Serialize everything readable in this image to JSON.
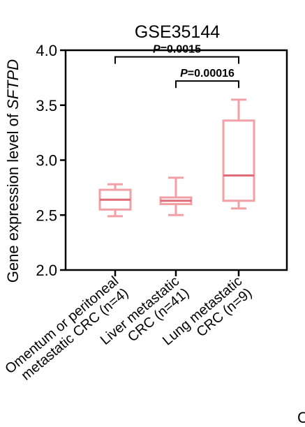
{
  "chart_data": {
    "type": "box",
    "title": "GSE35144",
    "ylabel_prefix": "Gene expression level of ",
    "ylabel_gene": "SFTPD",
    "ylim": [
      2.0,
      4.0
    ],
    "yticks": [
      "2.0",
      "2.5",
      "3.0",
      "3.5",
      "4.0"
    ],
    "ytick_values": [
      2.0,
      2.5,
      3.0,
      3.5,
      4.0
    ],
    "box_color": "#f2a0a6",
    "median_color": "#e06a75",
    "categories": [
      {
        "line1": "Omentum or peritoneal",
        "line2": "metastatic CRC (n=4)",
        "min": 2.49,
        "q1": 2.55,
        "median": 2.64,
        "q3": 2.73,
        "max": 2.78
      },
      {
        "line1": "Liver metastatic",
        "line2": "CRC (n=41)",
        "min": 2.5,
        "q1": 2.6,
        "median": 2.63,
        "q3": 2.66,
        "max": 2.84
      },
      {
        "line1": "Lung metastatic",
        "line2": "CRC (n=9)",
        "min": 2.56,
        "q1": 2.63,
        "median": 2.86,
        "q3": 3.36,
        "max": 3.55
      }
    ],
    "comparisons": [
      {
        "p_label": "P",
        "p_value": "=0.0015",
        "from": 0,
        "to": 2,
        "y": 3.94
      },
      {
        "p_label": "P",
        "p_value": "=0.00016",
        "from": 1,
        "to": 2,
        "y": 3.72
      }
    ]
  },
  "footer": {
    "corner_glyph": "C"
  }
}
